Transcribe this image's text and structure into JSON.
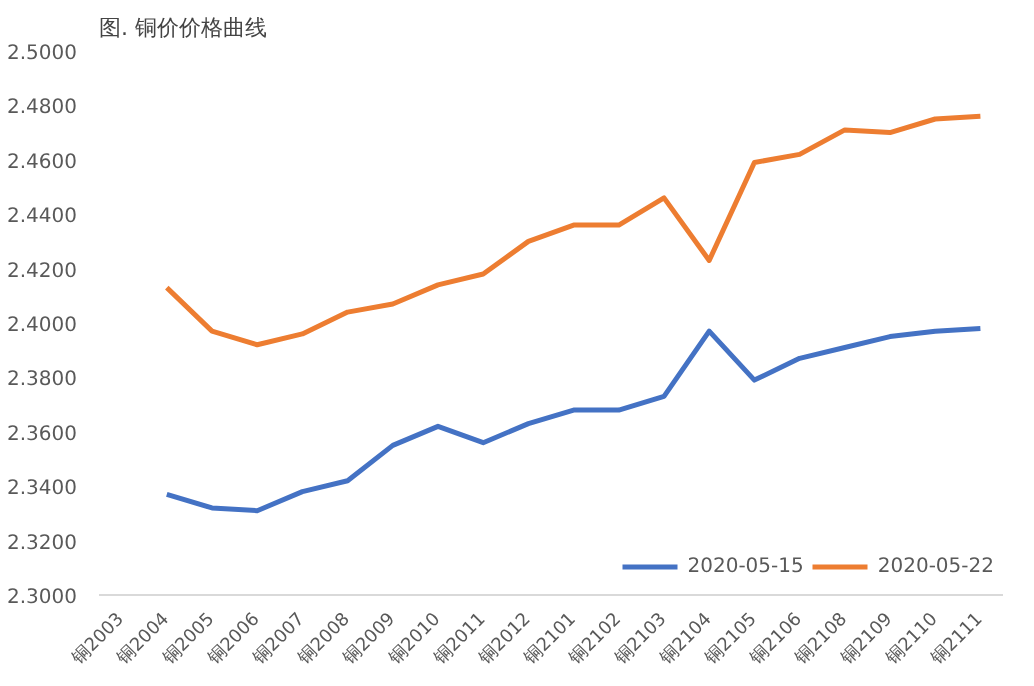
{
  "chart_data": {
    "type": "line",
    "title": "图. 铜价价格曲线",
    "categories": [
      "铜2003",
      "铜2004",
      "铜2005",
      "铜2006",
      "铜2007",
      "铜2008",
      "铜2009",
      "铜2010",
      "铜2011",
      "铜2012",
      "铜2101",
      "铜2102",
      "铜2103",
      "铜2104",
      "铜2105",
      "铜2106",
      "铜2108",
      "铜2109",
      "铜2110",
      "铜2111"
    ],
    "series": [
      {
        "name": "2020-05-15",
        "color": "#4472c4",
        "values": [
          null,
          2.337,
          2.332,
          2.331,
          2.338,
          2.342,
          2.355,
          2.362,
          2.356,
          2.363,
          2.368,
          2.368,
          2.373,
          2.397,
          2.379,
          2.387,
          2.391,
          2.395,
          2.397,
          2.398
        ]
      },
      {
        "name": "2020-05-22",
        "color": "#ed7d31",
        "values": [
          null,
          2.413,
          2.397,
          2.392,
          2.396,
          2.404,
          2.407,
          2.414,
          2.418,
          2.43,
          2.436,
          2.436,
          2.446,
          2.423,
          2.459,
          2.462,
          2.471,
          2.47,
          2.475,
          2.476
        ]
      }
    ],
    "ylim": [
      2.3,
      2.5
    ],
    "yticks": [
      {
        "value": 2.3,
        "label": "2.3000"
      },
      {
        "value": 2.32,
        "label": "2.3200"
      },
      {
        "value": 2.34,
        "label": "2.3400"
      },
      {
        "value": 2.36,
        "label": "2.3600"
      },
      {
        "value": 2.38,
        "label": "2.3800"
      },
      {
        "value": 2.4,
        "label": "2.4000"
      },
      {
        "value": 2.42,
        "label": "2.4200"
      },
      {
        "value": 2.44,
        "label": "2.4400"
      },
      {
        "value": 2.46,
        "label": "2.4600"
      },
      {
        "value": 2.48,
        "label": "2.4800"
      },
      {
        "value": 2.5,
        "label": "2.5000"
      }
    ],
    "grid": false,
    "legend": "bottom right",
    "marker": "none",
    "line_style": "solid"
  }
}
